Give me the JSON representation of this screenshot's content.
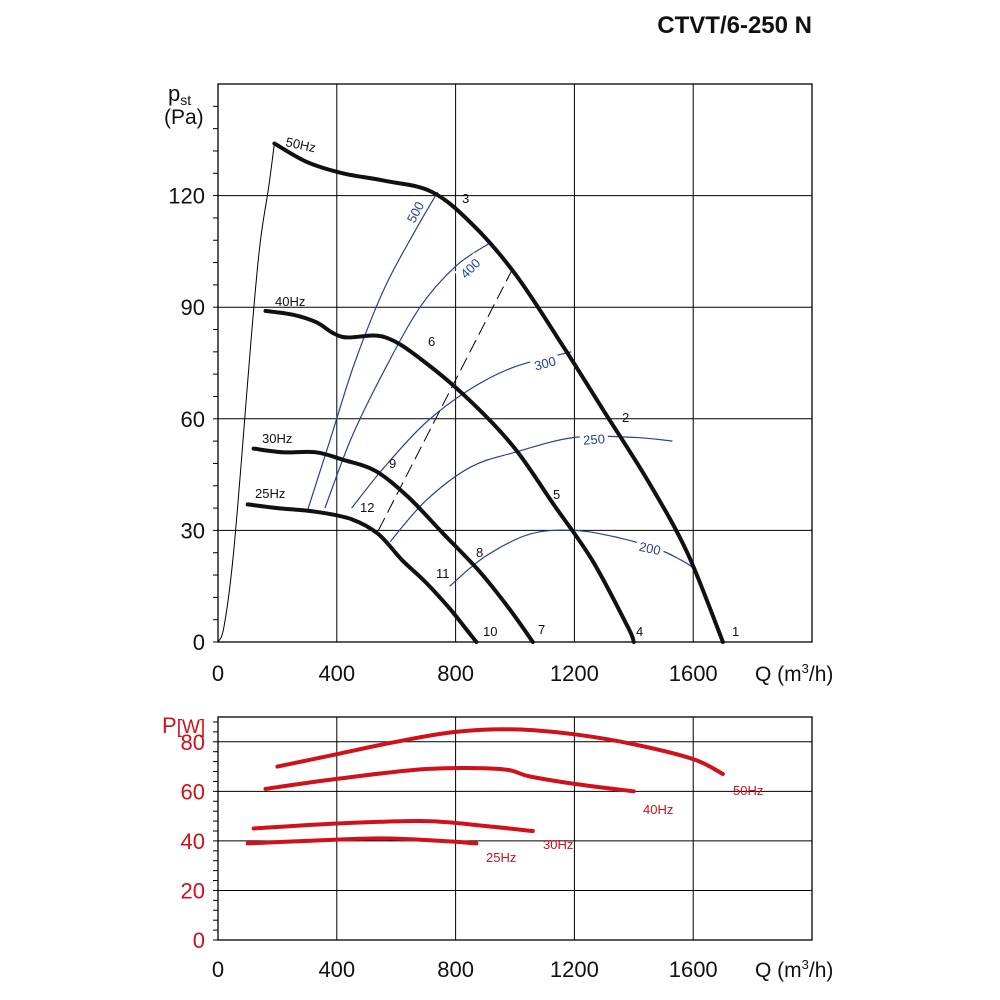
{
  "title": "CTVT/6-250 N",
  "chart_data": [
    {
      "type": "line",
      "name": "pressure",
      "ylabel_main": "p",
      "ylabel_sub": "st",
      "ylabel_unit": "(Pa)",
      "xlabel_main": "Q (m",
      "xlabel_sup": "3",
      "xlabel_tail": "/h)",
      "xlim": [
        0,
        2000
      ],
      "ylim": [
        0,
        150
      ],
      "xticks": [
        0,
        400,
        800,
        1200,
        1600
      ],
      "xtick_labels": [
        "0",
        "400",
        "800",
        "1200",
        "1600"
      ],
      "yticks": [
        0,
        30,
        60,
        90,
        120
      ],
      "ytick_labels": [
        "0",
        "30",
        "60",
        "90",
        "120"
      ],
      "grid": true,
      "fan_curves": [
        {
          "name": "50Hz",
          "points": [
            [
              190,
              134
            ],
            [
              300,
              129
            ],
            [
              420,
              126
            ],
            [
              560,
              124
            ],
            [
              720,
              121
            ],
            [
              860,
              112
            ],
            [
              1000,
              99
            ],
            [
              1150,
              81
            ],
            [
              1300,
              62
            ],
            [
              1450,
              43
            ],
            [
              1580,
              24
            ],
            [
              1700,
              0
            ]
          ]
        },
        {
          "name": "40Hz",
          "points": [
            [
              160,
              89
            ],
            [
              250,
              88
            ],
            [
              330,
              86
            ],
            [
              420,
              82
            ],
            [
              560,
              82
            ],
            [
              700,
              75
            ],
            [
              860,
              64
            ],
            [
              1000,
              52
            ],
            [
              1130,
              37
            ],
            [
              1260,
              22
            ],
            [
              1380,
              4
            ],
            [
              1400,
              0
            ]
          ]
        },
        {
          "name": "30Hz",
          "points": [
            [
              120,
              52
            ],
            [
              220,
              51
            ],
            [
              330,
              51
            ],
            [
              420,
              49
            ],
            [
              530,
              46
            ],
            [
              640,
              39
            ],
            [
              760,
              29
            ],
            [
              880,
              19
            ],
            [
              980,
              9
            ],
            [
              1060,
              0
            ]
          ]
        },
        {
          "name": "25Hz",
          "points": [
            [
              100,
              37
            ],
            [
              200,
              36
            ],
            [
              330,
              35
            ],
            [
              450,
              33
            ],
            [
              540,
              29
            ],
            [
              620,
              22
            ],
            [
              700,
              16
            ],
            [
              780,
              9
            ],
            [
              840,
              3
            ],
            [
              870,
              0
            ]
          ]
        }
      ],
      "system_curves": [
        {
          "label": "500",
          "points": [
            [
              300,
              35
            ],
            [
              380,
              55
            ],
            [
              460,
              75
            ],
            [
              560,
              95
            ],
            [
              660,
              110
            ],
            [
              740,
              121
            ]
          ]
        },
        {
          "label": "400",
          "points": [
            [
              360,
              36
            ],
            [
              450,
              55
            ],
            [
              560,
              73
            ],
            [
              680,
              90
            ],
            [
              800,
              101
            ],
            [
              910,
              107
            ]
          ]
        },
        {
          "label": "300",
          "points": [
            [
              450,
              36
            ],
            [
              560,
              47
            ],
            [
              700,
              59
            ],
            [
              850,
              68
            ],
            [
              1000,
              74
            ],
            [
              1190,
              78
            ]
          ]
        },
        {
          "label": "250",
          "points": [
            [
              580,
              27
            ],
            [
              700,
              38
            ],
            [
              850,
              47
            ],
            [
              1000,
              51
            ],
            [
              1200,
              55
            ],
            [
              1400,
              55
            ],
            [
              1530,
              54
            ]
          ]
        },
        {
          "label": "200",
          "points": [
            [
              780,
              15
            ],
            [
              900,
              23
            ],
            [
              1050,
              29
            ],
            [
              1200,
              30
            ],
            [
              1350,
              28
            ],
            [
              1480,
              25
            ],
            [
              1560,
              22
            ],
            [
              1600,
              20
            ]
          ]
        }
      ],
      "dashed_line": {
        "points": [
          [
            540,
            30
          ],
          [
            990,
            100
          ]
        ]
      },
      "operating_points": [
        {
          "label": "1"
        },
        {
          "label": "2"
        },
        {
          "label": "3"
        },
        {
          "label": "4"
        },
        {
          "label": "5"
        },
        {
          "label": "6"
        },
        {
          "label": "7"
        },
        {
          "label": "8"
        },
        {
          "label": "9"
        },
        {
          "label": "10"
        },
        {
          "label": "11"
        },
        {
          "label": "12"
        }
      ],
      "inlet_curve": {
        "points": [
          [
            0,
            0
          ],
          [
            20,
            4
          ],
          [
            50,
            22
          ],
          [
            80,
            50
          ],
          [
            110,
            80
          ],
          [
            140,
            106
          ],
          [
            170,
            122
          ],
          [
            190,
            134
          ]
        ]
      }
    },
    {
      "type": "line",
      "name": "power",
      "ylabel_main": "P",
      "ylabel_unit": "[W]",
      "xlabel_main": "Q (m",
      "xlabel_sup": "3",
      "xlabel_tail": "/h)",
      "xlim": [
        0,
        2000
      ],
      "ylim": [
        0,
        90
      ],
      "xticks": [
        0,
        400,
        800,
        1200,
        1600
      ],
      "xtick_labels": [
        "0",
        "400",
        "800",
        "1200",
        "1600"
      ],
      "yticks": [
        0,
        20,
        40,
        60,
        80
      ],
      "ytick_labels": [
        "0",
        "20",
        "40",
        "60",
        "80"
      ],
      "grid": true,
      "series": [
        {
          "name": "50Hz",
          "color": "#d0101a",
          "points": [
            [
              200,
              70
            ],
            [
              400,
              75
            ],
            [
              600,
              80
            ],
            [
              800,
              84
            ],
            [
              1000,
              85
            ],
            [
              1200,
              83
            ],
            [
              1400,
              79
            ],
            [
              1600,
              73
            ],
            [
              1700,
              67
            ]
          ]
        },
        {
          "name": "40Hz",
          "color": "#d0101a",
          "points": [
            [
              160,
              61
            ],
            [
              400,
              65
            ],
            [
              700,
              69
            ],
            [
              950,
              69
            ],
            [
              1050,
              66
            ],
            [
              1200,
              63
            ],
            [
              1400,
              60
            ]
          ]
        },
        {
          "name": "30Hz",
          "color": "#d0101a",
          "points": [
            [
              120,
              45
            ],
            [
              400,
              47
            ],
            [
              700,
              48
            ],
            [
              900,
              46
            ],
            [
              1060,
              44
            ]
          ]
        },
        {
          "name": "25Hz",
          "color": "#d0101a",
          "points": [
            [
              100,
              39
            ],
            [
              300,
              40
            ],
            [
              550,
              41
            ],
            [
              750,
              40
            ],
            [
              870,
              39
            ]
          ]
        }
      ]
    }
  ]
}
